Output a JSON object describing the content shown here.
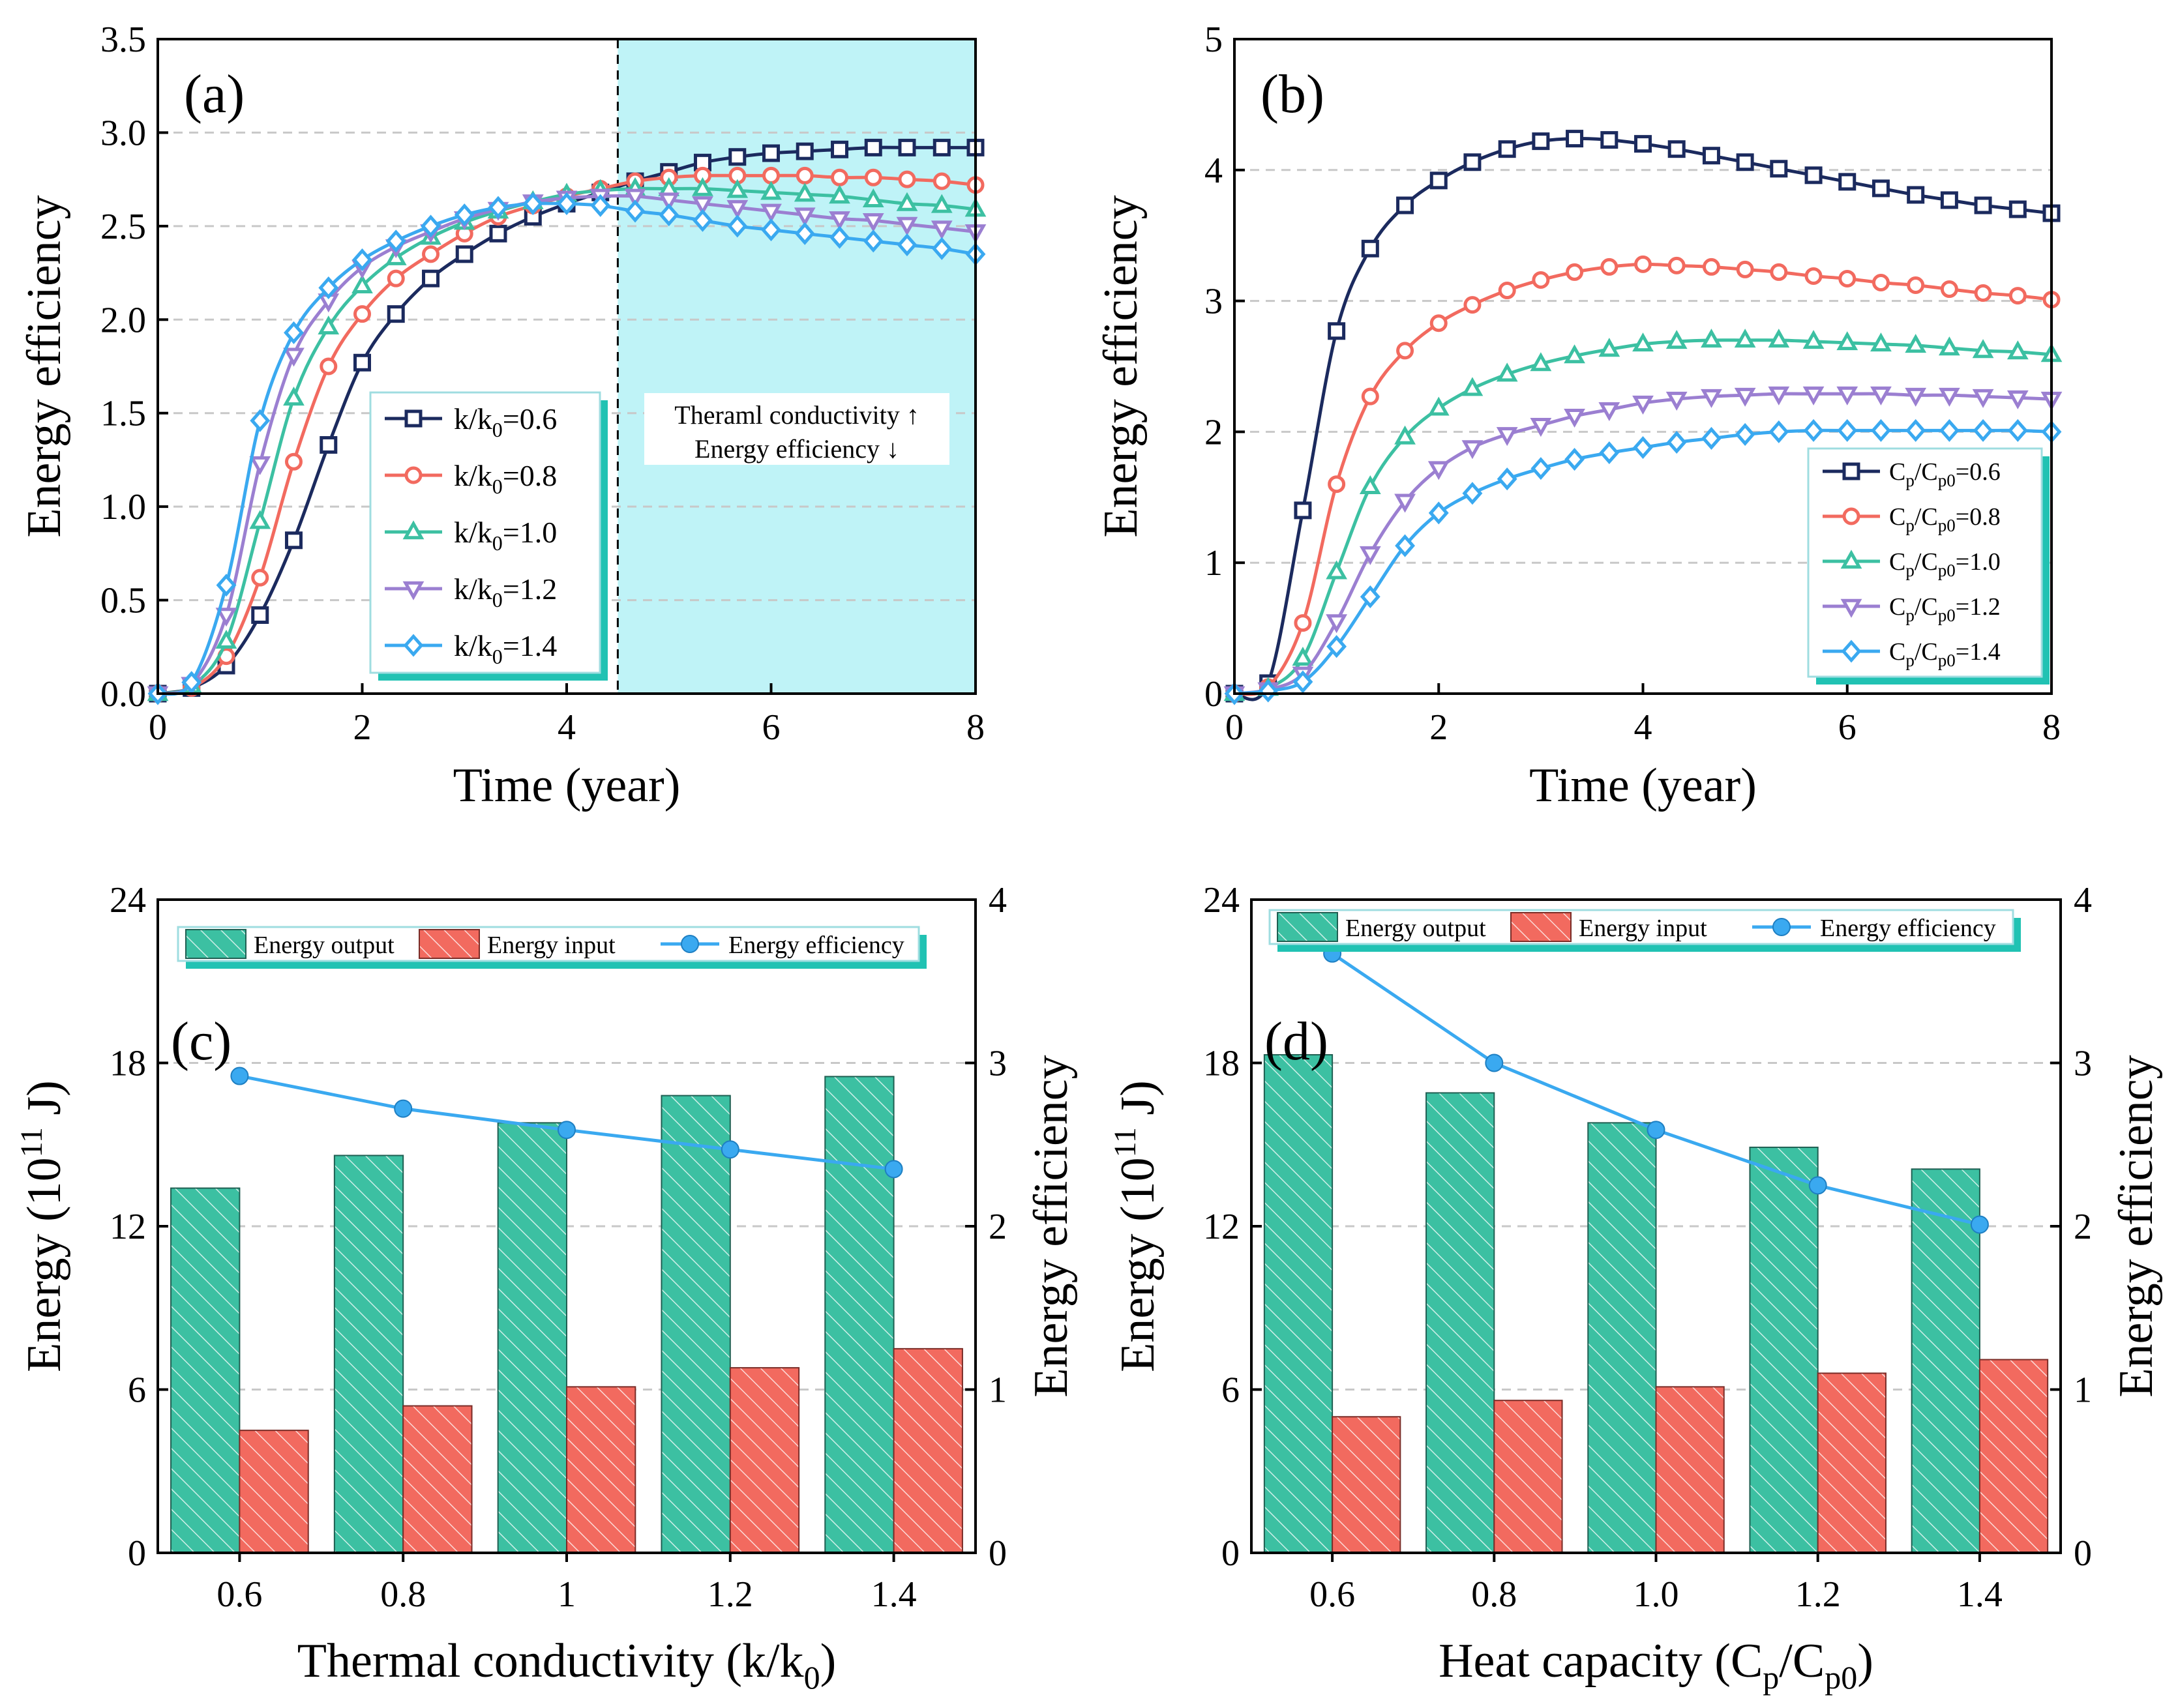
{
  "chart_data": [
    {
      "id": "a",
      "type": "line",
      "panel_label": "(a)",
      "xlabel": "Time (year)",
      "ylabel": "Energy efficiency",
      "xlim": [
        0,
        8
      ],
      "ylim": [
        0,
        3.5
      ],
      "xticks": [
        "0",
        "2",
        "4",
        "6",
        "8"
      ],
      "yticks": [
        "0.0",
        "0.5",
        "1.0",
        "1.5",
        "2.0",
        "2.5",
        "3.0",
        "3.5"
      ],
      "grid": true,
      "shaded_region": {
        "x_start": 4.5,
        "x_end": 8,
        "color": "#bff3f7"
      },
      "divider_x": 4.5,
      "annotation": [
        "Theraml conductivity ↑",
        "Energy efficiency ↓"
      ],
      "legend_placement": "center",
      "series": [
        {
          "name": "k/k0=0.6",
          "label_main": "k/k",
          "label_sub": "0",
          "label_value": "=0.6",
          "color": "#1b2a5e",
          "marker": "square",
          "x": [
            0,
            0.33,
            0.67,
            1.0,
            1.33,
            1.67,
            2.0,
            2.33,
            2.67,
            3.0,
            3.33,
            3.67,
            4.0,
            4.33,
            4.67,
            5.0,
            5.33,
            5.67,
            6.0,
            6.33,
            6.67,
            7.0,
            7.33,
            7.67,
            8.0
          ],
          "y": [
            0,
            0.03,
            0.15,
            0.42,
            0.82,
            1.33,
            1.77,
            2.03,
            2.22,
            2.35,
            2.46,
            2.55,
            2.62,
            2.68,
            2.74,
            2.79,
            2.84,
            2.87,
            2.89,
            2.9,
            2.91,
            2.92,
            2.92,
            2.92,
            2.92
          ]
        },
        {
          "name": "k/k0=0.8",
          "label_main": "k/k",
          "label_sub": "0",
          "label_value": "=0.8",
          "color": "#f26a5f",
          "marker": "circle",
          "x": [
            0,
            0.33,
            0.67,
            1.0,
            1.33,
            1.67,
            2.0,
            2.33,
            2.67,
            3.0,
            3.33,
            3.67,
            4.0,
            4.33,
            4.67,
            5.0,
            5.33,
            5.67,
            6.0,
            6.33,
            6.67,
            7.0,
            7.33,
            7.67,
            8.0
          ],
          "y": [
            0,
            0.03,
            0.2,
            0.62,
            1.24,
            1.75,
            2.03,
            2.22,
            2.35,
            2.46,
            2.55,
            2.61,
            2.66,
            2.7,
            2.74,
            2.76,
            2.77,
            2.77,
            2.77,
            2.77,
            2.76,
            2.76,
            2.75,
            2.74,
            2.72
          ]
        },
        {
          "name": "k/k0=1.0",
          "label_main": "k/k",
          "label_sub": "0",
          "label_value": "=1.0",
          "color": "#3cc0a2",
          "marker": "triangle-up",
          "x": [
            0,
            0.33,
            0.67,
            1.0,
            1.33,
            1.67,
            2.0,
            2.33,
            2.67,
            3.0,
            3.33,
            3.67,
            4.0,
            4.33,
            4.67,
            5.0,
            5.33,
            5.67,
            6.0,
            6.33,
            6.67,
            7.0,
            7.33,
            7.67,
            8.0
          ],
          "y": [
            0,
            0.04,
            0.28,
            0.92,
            1.58,
            1.96,
            2.18,
            2.33,
            2.44,
            2.52,
            2.58,
            2.63,
            2.67,
            2.69,
            2.7,
            2.7,
            2.7,
            2.69,
            2.68,
            2.67,
            2.66,
            2.64,
            2.62,
            2.61,
            2.59
          ]
        },
        {
          "name": "k/k0=1.2",
          "label_main": "k/k",
          "label_sub": "0",
          "label_value": "=1.2",
          "color": "#9b7fd1",
          "marker": "triangle-down",
          "x": [
            0,
            0.33,
            0.67,
            1.0,
            1.33,
            1.67,
            2.0,
            2.33,
            2.67,
            3.0,
            3.33,
            3.67,
            4.0,
            4.33,
            4.67,
            5.0,
            5.33,
            5.67,
            6.0,
            6.33,
            6.67,
            7.0,
            7.33,
            7.67,
            8.0
          ],
          "y": [
            0,
            0.05,
            0.42,
            1.23,
            1.81,
            2.1,
            2.28,
            2.39,
            2.47,
            2.54,
            2.59,
            2.63,
            2.65,
            2.66,
            2.66,
            2.64,
            2.62,
            2.6,
            2.58,
            2.56,
            2.54,
            2.53,
            2.51,
            2.49,
            2.47
          ]
        },
        {
          "name": "k/k0=1.4",
          "label_main": "k/k",
          "label_sub": "0",
          "label_value": "=1.4",
          "color": "#3aa9f0",
          "marker": "diamond",
          "x": [
            0,
            0.33,
            0.67,
            1.0,
            1.33,
            1.67,
            2.0,
            2.33,
            2.67,
            3.0,
            3.33,
            3.67,
            4.0,
            4.33,
            4.67,
            5.0,
            5.33,
            5.67,
            6.0,
            6.33,
            6.67,
            7.0,
            7.33,
            7.67,
            8.0
          ],
          "y": [
            0,
            0.06,
            0.58,
            1.46,
            1.93,
            2.17,
            2.32,
            2.42,
            2.5,
            2.56,
            2.6,
            2.62,
            2.62,
            2.61,
            2.58,
            2.56,
            2.53,
            2.5,
            2.48,
            2.46,
            2.44,
            2.42,
            2.4,
            2.38,
            2.35
          ]
        }
      ]
    },
    {
      "id": "b",
      "type": "line",
      "panel_label": "(b)",
      "xlabel": "Time (year)",
      "ylabel": "Energy efficiency",
      "xlim": [
        0,
        8
      ],
      "ylim": [
        0,
        5
      ],
      "xticks": [
        "0",
        "2",
        "4",
        "6",
        "8"
      ],
      "yticks": [
        "0",
        "1",
        "2",
        "3",
        "4",
        "5"
      ],
      "grid": true,
      "legend_placement": "bottom-right",
      "series": [
        {
          "name": "Cp/Cp0=0.6",
          "label_value": "=0.6",
          "color": "#1b2a5e",
          "marker": "square",
          "x": [
            0,
            0.33,
            0.67,
            1.0,
            1.33,
            1.67,
            2.0,
            2.33,
            2.67,
            3.0,
            3.33,
            3.67,
            4.0,
            4.33,
            4.67,
            5.0,
            5.33,
            5.67,
            6.0,
            6.33,
            6.67,
            7.0,
            7.33,
            7.67,
            8.0
          ],
          "y": [
            0,
            0.08,
            1.4,
            2.77,
            3.4,
            3.73,
            3.92,
            4.06,
            4.16,
            4.22,
            4.24,
            4.23,
            4.2,
            4.16,
            4.11,
            4.06,
            4.01,
            3.96,
            3.91,
            3.86,
            3.81,
            3.77,
            3.73,
            3.7,
            3.67
          ]
        },
        {
          "name": "Cp/Cp0=0.8",
          "label_value": "=0.8",
          "color": "#f26a5f",
          "marker": "circle",
          "x": [
            0,
            0.33,
            0.67,
            1.0,
            1.33,
            1.67,
            2.0,
            2.33,
            2.67,
            3.0,
            3.33,
            3.67,
            4.0,
            4.33,
            4.67,
            5.0,
            5.33,
            5.67,
            6.0,
            6.33,
            6.67,
            7.0,
            7.33,
            7.67,
            8.0
          ],
          "y": [
            0,
            0.05,
            0.54,
            1.6,
            2.27,
            2.62,
            2.83,
            2.97,
            3.08,
            3.16,
            3.22,
            3.26,
            3.28,
            3.27,
            3.26,
            3.24,
            3.22,
            3.19,
            3.17,
            3.14,
            3.12,
            3.09,
            3.06,
            3.04,
            3.01
          ]
        },
        {
          "name": "Cp/Cp0=1.0",
          "label_value": "=1.0",
          "color": "#3cc0a2",
          "marker": "triangle-up",
          "x": [
            0,
            0.33,
            0.67,
            1.0,
            1.33,
            1.67,
            2.0,
            2.33,
            2.67,
            3.0,
            3.33,
            3.67,
            4.0,
            4.33,
            4.67,
            5.0,
            5.33,
            5.67,
            6.0,
            6.33,
            6.67,
            7.0,
            7.33,
            7.67,
            8.0
          ],
          "y": [
            0,
            0.04,
            0.27,
            0.93,
            1.58,
            1.96,
            2.18,
            2.33,
            2.44,
            2.52,
            2.58,
            2.63,
            2.67,
            2.69,
            2.7,
            2.7,
            2.7,
            2.69,
            2.68,
            2.67,
            2.66,
            2.64,
            2.62,
            2.61,
            2.59
          ]
        },
        {
          "name": "Cp/Cp0=1.2",
          "label_value": "=1.2",
          "color": "#9b7fd1",
          "marker": "triangle-down",
          "x": [
            0,
            0.33,
            0.67,
            1.0,
            1.33,
            1.67,
            2.0,
            2.33,
            2.67,
            3.0,
            3.33,
            3.67,
            4.0,
            4.33,
            4.67,
            5.0,
            5.33,
            5.67,
            6.0,
            6.33,
            6.67,
            7.0,
            7.33,
            7.67,
            8.0
          ],
          "y": [
            0,
            0.03,
            0.15,
            0.55,
            1.07,
            1.47,
            1.72,
            1.88,
            1.98,
            2.05,
            2.12,
            2.17,
            2.22,
            2.25,
            2.27,
            2.28,
            2.29,
            2.29,
            2.29,
            2.29,
            2.28,
            2.28,
            2.27,
            2.26,
            2.25
          ]
        },
        {
          "name": "Cp/Cp0=1.4",
          "label_value": "=1.4",
          "color": "#3aa9f0",
          "marker": "diamond",
          "x": [
            0,
            0.33,
            0.67,
            1.0,
            1.33,
            1.67,
            2.0,
            2.33,
            2.67,
            3.0,
            3.33,
            3.67,
            4.0,
            4.33,
            4.67,
            5.0,
            5.33,
            5.67,
            6.0,
            6.33,
            6.67,
            7.0,
            7.33,
            7.67,
            8.0
          ],
          "y": [
            0,
            0.02,
            0.09,
            0.36,
            0.74,
            1.13,
            1.38,
            1.53,
            1.64,
            1.72,
            1.79,
            1.84,
            1.88,
            1.92,
            1.95,
            1.98,
            2.0,
            2.01,
            2.01,
            2.01,
            2.01,
            2.01,
            2.01,
            2.01,
            2.0
          ]
        }
      ]
    },
    {
      "id": "c",
      "type": "bar",
      "panel_label": "(c)",
      "xlabel": "Thermal conductivity (k/k",
      "xlabel_sub": "0",
      "xlabel_end": ")",
      "ylabel": "Energy (10",
      "ylabel_sup": "11",
      "ylabel_end": " J)",
      "y2label": "Energy efficiency",
      "categories": [
        "0.6",
        "0.8",
        "1",
        "1.2",
        "1.4"
      ],
      "ylim": [
        0,
        24
      ],
      "yticks": [
        "0",
        "6",
        "12",
        "18",
        "24"
      ],
      "y2lim": [
        0,
        4
      ],
      "y2ticks": [
        "0",
        "1",
        "2",
        "3",
        "4"
      ],
      "grid": true,
      "legend_placement": "top",
      "series": [
        {
          "name": "Energy output",
          "kind": "bar",
          "axis": "left",
          "color": "#3cc0a2",
          "pattern": "hatch",
          "values": [
            13.4,
            14.6,
            15.8,
            16.8,
            17.5
          ]
        },
        {
          "name": "Energy input",
          "kind": "bar",
          "axis": "left",
          "color": "#f26a5f",
          "pattern": "hatch",
          "values": [
            4.5,
            5.4,
            6.1,
            6.8,
            7.5
          ]
        },
        {
          "name": "Energy efficiency",
          "kind": "line",
          "axis": "right",
          "color": "#3aa9f0",
          "marker": "circle",
          "values": [
            2.92,
            2.72,
            2.59,
            2.47,
            2.35
          ]
        }
      ]
    },
    {
      "id": "d",
      "type": "bar",
      "panel_label": "(d)",
      "xlabel": "Heat capacity (C",
      "xlabel_sub": "p",
      "xlabel_mid": "/C",
      "xlabel_sub2": "p0",
      "xlabel_end": ")",
      "ylabel": "Energy (10",
      "ylabel_sup": "11",
      "ylabel_end": " J)",
      "y2label": "Energy efficiency",
      "categories": [
        "0.6",
        "0.8",
        "1.0",
        "1.2",
        "1.4"
      ],
      "ylim": [
        0,
        24
      ],
      "yticks": [
        "0",
        "6",
        "12",
        "18",
        "24"
      ],
      "y2lim": [
        0,
        4
      ],
      "y2ticks": [
        "0",
        "1",
        "2",
        "3",
        "4"
      ],
      "grid": true,
      "legend_placement": "top",
      "series": [
        {
          "name": "Energy output",
          "kind": "bar",
          "axis": "left",
          "color": "#3cc0a2",
          "pattern": "hatch",
          "values": [
            18.3,
            16.9,
            15.8,
            14.9,
            14.1
          ]
        },
        {
          "name": "Energy input",
          "kind": "bar",
          "axis": "left",
          "color": "#f26a5f",
          "pattern": "hatch",
          "values": [
            5.0,
            5.6,
            6.1,
            6.6,
            7.1
          ]
        },
        {
          "name": "Energy efficiency",
          "kind": "line",
          "axis": "right",
          "color": "#3aa9f0",
          "marker": "circle",
          "values": [
            3.67,
            3.0,
            2.59,
            2.25,
            2.01
          ]
        }
      ]
    }
  ]
}
